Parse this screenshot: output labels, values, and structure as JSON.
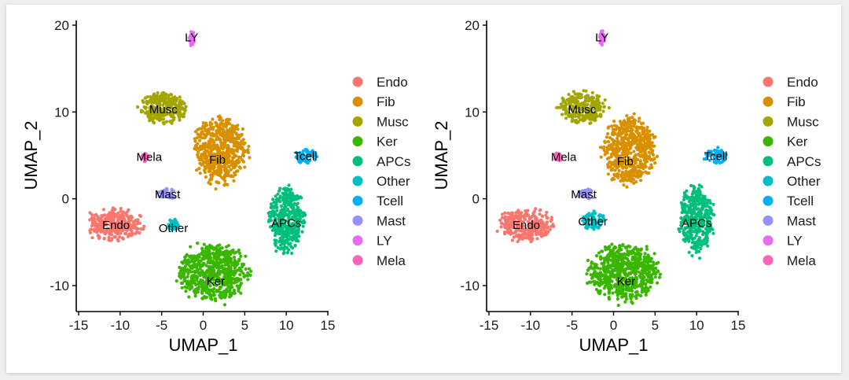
{
  "chart_data": [
    {
      "type": "scatter",
      "title": "",
      "xlabel": "UMAP_1",
      "ylabel": "UMAP_2",
      "xlim": [
        -16,
        16
      ],
      "ylim": [
        -13,
        21
      ],
      "xticks": [
        -15,
        -10,
        -5,
        0,
        5,
        10,
        15
      ],
      "yticks": [
        -10,
        0,
        10,
        20
      ],
      "legend": "right",
      "clusters": [
        {
          "name": "Endo",
          "color": "#F8766D",
          "cx": -10.5,
          "cy": -3.0,
          "rx": 3.2,
          "ry": 1.7,
          "label_x": -10.5,
          "label_y": -3.0
        },
        {
          "name": "Fib",
          "color": "#D89000",
          "cx": 2.0,
          "cy": 5.5,
          "rx": 3.0,
          "ry": 3.6,
          "label_x": 1.7,
          "label_y": 4.5
        },
        {
          "name": "Musc",
          "color": "#A3A500",
          "cx": -4.8,
          "cy": 10.5,
          "rx": 2.7,
          "ry": 1.7,
          "label_x": -4.8,
          "label_y": 10.3
        },
        {
          "name": "Ker",
          "color": "#39B600",
          "cx": 1.2,
          "cy": -8.5,
          "rx": 4.0,
          "ry": 3.1,
          "label_x": 1.5,
          "label_y": -9.5
        },
        {
          "name": "APCs",
          "color": "#00BF7D",
          "cx": 10.0,
          "cy": -2.3,
          "rx": 2.0,
          "ry": 3.6,
          "label_x": 10.0,
          "label_y": -2.8
        },
        {
          "name": "Other",
          "color": "#00BFC4",
          "cx": -3.6,
          "cy": -3.0,
          "rx": 0.6,
          "ry": 0.6,
          "label_x": -3.6,
          "label_y": -3.4
        },
        {
          "name": "Tcell",
          "color": "#00B0F6",
          "cx": 12.3,
          "cy": 4.9,
          "rx": 1.4,
          "ry": 0.8,
          "label_x": 12.3,
          "label_y": 4.9
        },
        {
          "name": "Mast",
          "color": "#9590FF",
          "cx": -4.3,
          "cy": 0.6,
          "rx": 1.0,
          "ry": 0.6,
          "label_x": -4.3,
          "label_y": 0.5
        },
        {
          "name": "LY",
          "color": "#E76BF3",
          "cx": -1.4,
          "cy": 18.5,
          "rx": 0.35,
          "ry": 0.8,
          "label_x": -1.4,
          "label_y": 18.6
        },
        {
          "name": "Mela",
          "color": "#FF62BC",
          "cx": -7.0,
          "cy": 4.8,
          "rx": 0.45,
          "ry": 0.45,
          "label_x": -6.5,
          "label_y": 4.8
        }
      ],
      "legend_entries": [
        "Endo",
        "Fib",
        "Musc",
        "Ker",
        "APCs",
        "Other",
        "Tcell",
        "Mast",
        "LY",
        "Mela"
      ]
    },
    {
      "type": "scatter",
      "title": "",
      "xlabel": "UMAP_1",
      "ylabel": "UMAP_2",
      "xlim": [
        -16,
        16
      ],
      "ylim": [
        -13,
        21
      ],
      "xticks": [
        -15,
        -10,
        -5,
        0,
        5,
        10,
        15
      ],
      "yticks": [
        -10,
        0,
        10,
        20
      ],
      "legend": "right",
      "clusters": [
        {
          "name": "Endo",
          "color": "#F8766D",
          "cx": -10.5,
          "cy": -3.0,
          "rx": 3.2,
          "ry": 1.7,
          "label_x": -10.5,
          "label_y": -3.0
        },
        {
          "name": "Fib",
          "color": "#D89000",
          "cx": 2.0,
          "cy": 5.5,
          "rx": 3.0,
          "ry": 3.6,
          "label_x": 1.4,
          "label_y": 4.3
        },
        {
          "name": "Musc",
          "color": "#A3A500",
          "cx": -3.8,
          "cy": 10.5,
          "rx": 2.7,
          "ry": 1.7,
          "label_x": -3.8,
          "label_y": 10.3
        },
        {
          "name": "Ker",
          "color": "#39B600",
          "cx": 1.2,
          "cy": -8.5,
          "rx": 4.0,
          "ry": 3.1,
          "label_x": 1.5,
          "label_y": -9.5
        },
        {
          "name": "APCs",
          "color": "#00BF7D",
          "cx": 10.0,
          "cy": -2.3,
          "rx": 2.0,
          "ry": 3.6,
          "label_x": 10.0,
          "label_y": -2.8
        },
        {
          "name": "Other",
          "color": "#00BFC4",
          "cx": -2.5,
          "cy": -2.5,
          "rx": 1.4,
          "ry": 1.0,
          "label_x": -2.5,
          "label_y": -2.6
        },
        {
          "name": "Tcell",
          "color": "#00B0F6",
          "cx": 12.3,
          "cy": 4.9,
          "rx": 1.4,
          "ry": 0.8,
          "label_x": 12.3,
          "label_y": 4.9
        },
        {
          "name": "Mast",
          "color": "#9590FF",
          "cx": -3.3,
          "cy": 0.6,
          "rx": 1.0,
          "ry": 0.6,
          "label_x": -3.6,
          "label_y": 0.5
        },
        {
          "name": "LY",
          "color": "#E76BF3",
          "cx": -1.4,
          "cy": 18.5,
          "rx": 0.35,
          "ry": 0.8,
          "label_x": -1.4,
          "label_y": 18.6
        },
        {
          "name": "Mela",
          "color": "#FF62BC",
          "cx": -6.7,
          "cy": 4.8,
          "rx": 0.45,
          "ry": 0.45,
          "label_x": -6.0,
          "label_y": 4.8
        }
      ],
      "legend_entries": [
        "Endo",
        "Fib",
        "Musc",
        "Ker",
        "APCs",
        "Other",
        "Tcell",
        "Mast",
        "LY",
        "Mela"
      ]
    }
  ]
}
